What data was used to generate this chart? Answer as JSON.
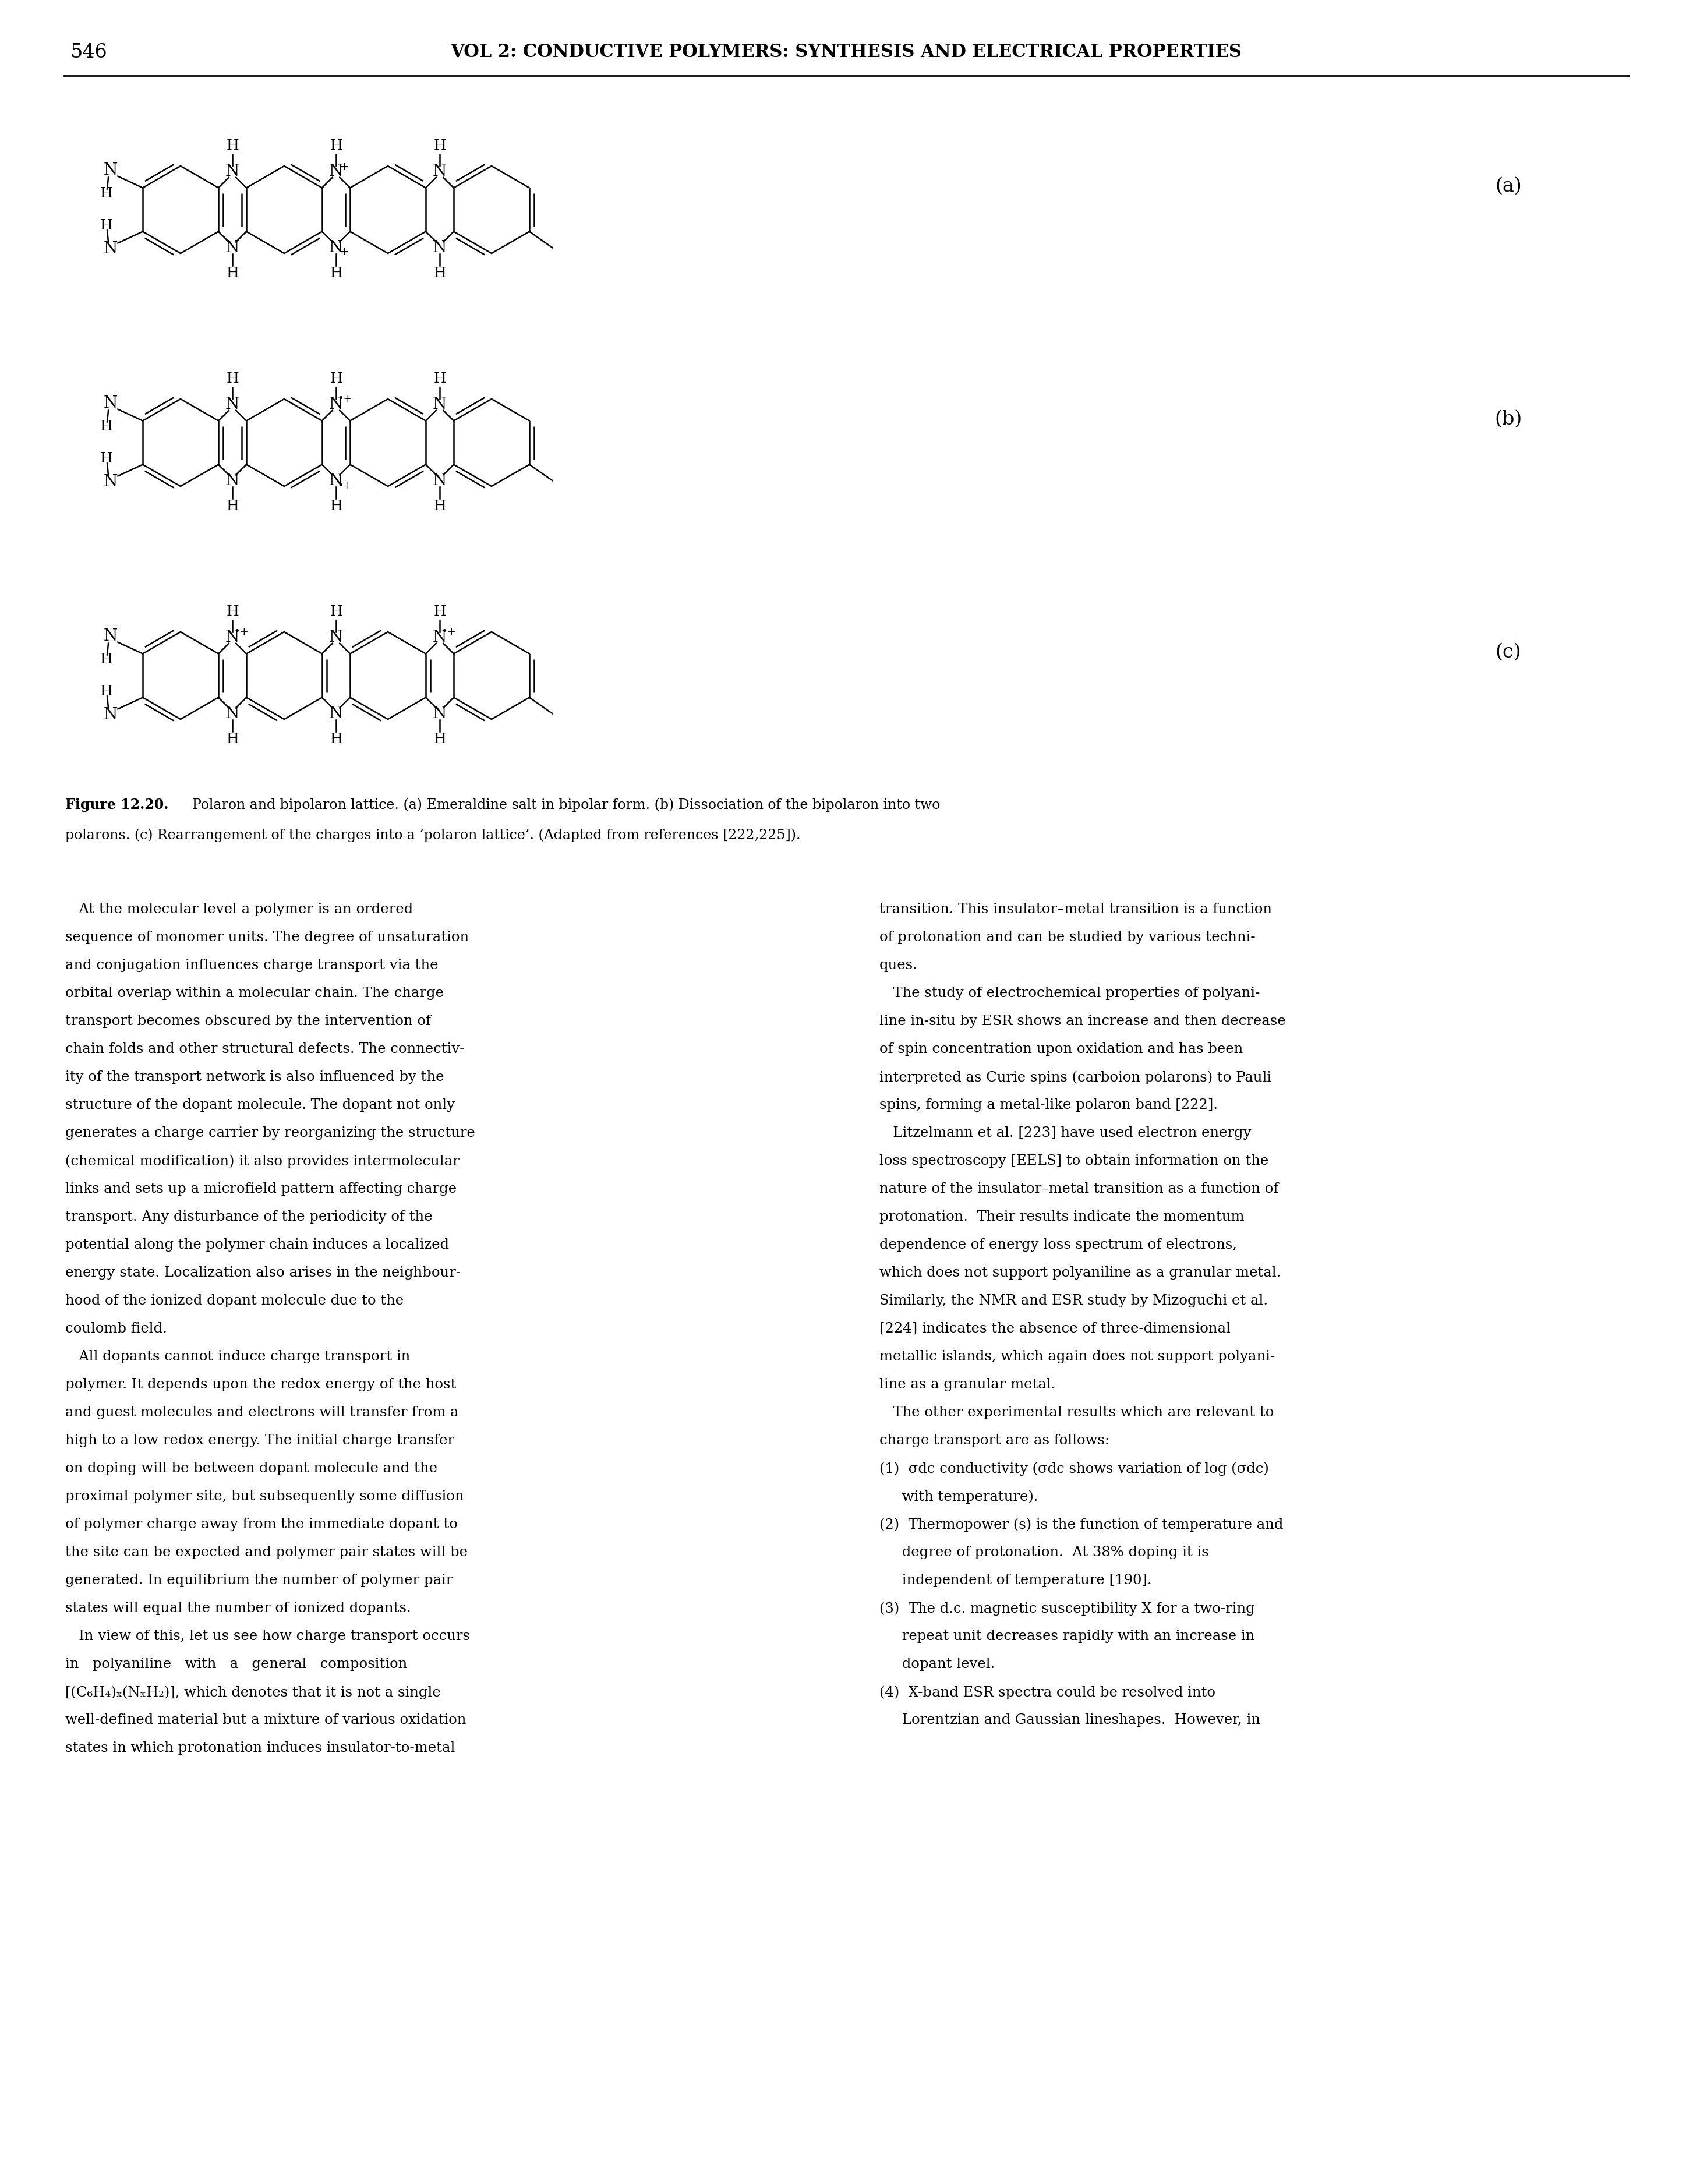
{
  "page_number": "546",
  "header_text": "VOL 2: CONDUCTIVE POLYMERS: SYNTHESIS AND ELECTRICAL PROPERTIES",
  "background_color": "#ffffff",
  "labels": [
    "(a)",
    "(b)",
    "(c)"
  ],
  "figure_caption_bold": "Figure 12.20.",
  "figure_caption_rest": " Polaron and bipolaron lattice. (a) Emeraldine salt in bipolar form. (b) Dissociation of the bipolaron into two polarons. (c) Rearrangement of the charges into a ‘polaron lattice’. (Adapted from references [222,225]).",
  "left_column": [
    "   At the molecular level a polymer is an ordered",
    "sequence of monomer units. The degree of unsaturation",
    "and conjugation influences charge transport via the",
    "orbital overlap within a molecular chain. The charge",
    "transport becomes obscured by the intervention of",
    "chain folds and other structural defects. The connectiv-",
    "ity of the transport network is also influenced by the",
    "structure of the dopant molecule. The dopant not only",
    "generates a charge carrier by reorganizing the structure",
    "(chemical modification) it also provides intermolecular",
    "links and sets up a microfield pattern affecting charge",
    "transport. Any disturbance of the periodicity of the",
    "potential along the polymer chain induces a localized",
    "energy state. Localization also arises in the neighbour-",
    "hood of the ionized dopant molecule due to the",
    "coulomb field.",
    "   All dopants cannot induce charge transport in",
    "polymer. It depends upon the redox energy of the host",
    "and guest molecules and electrons will transfer from a",
    "high to a low redox energy. The initial charge transfer",
    "on doping will be between dopant molecule and the",
    "proximal polymer site, but subsequently some diffusion",
    "of polymer charge away from the immediate dopant to",
    "the site can be expected and polymer pair states will be",
    "generated. In equilibrium the number of polymer pair",
    "states will equal the number of ionized dopants.",
    "   In view of this, let us see how charge transport occurs",
    "in   polyaniline   with   a   general   composition",
    "[(C₆H₄)ₓ(NₓH₂)], which denotes that it is not a single",
    "well-defined material but a mixture of various oxidation",
    "states in which protonation induces insulator-to-metal"
  ],
  "right_column": [
    "transition. This insulator–metal transition is a function",
    "of protonation and can be studied by various techni-",
    "ques.",
    "   The study of electrochemical properties of polyani-",
    "line in-situ by ESR shows an increase and then decrease",
    "of spin concentration upon oxidation and has been",
    "interpreted as Curie spins (carboion polarons) to Pauli",
    "spins, forming a metal-like polaron band [222].",
    "   Litzelmann et al. [223] have used electron energy",
    "loss spectroscopy [EELS] to obtain information on the",
    "nature of the insulator–metal transition as a function of",
    "protonation.  Their results indicate the momentum",
    "dependence of energy loss spectrum of electrons,",
    "which does not support polyaniline as a granular metal.",
    "Similarly, the NMR and ESR study by Mizoguchi et al.",
    "[224] indicates the absence of three-dimensional",
    "metallic islands, which again does not support polyani-",
    "line as a granular metal.",
    "   The other experimental results which are relevant to",
    "charge transport are as follows:",
    "(1)  σdc conductivity (σdc shows variation of log (σdc)",
    "     with temperature).",
    "(2)  Thermopower (s) is the function of temperature and",
    "     degree of protonation.  At 38% doping it is",
    "     independent of temperature [190].",
    "(3)  The d.c. magnetic susceptibility X for a two-ring",
    "     repeat unit decreases rapidly with an increase in",
    "     dopant level.",
    "(4)  X-band ESR spectra could be resolved into",
    "     Lorentzian and Gaussian lineshapes.  However, in"
  ],
  "struct_a": {
    "quinoid": [
      false,
      true,
      true,
      false
    ],
    "top_n": [
      "amine",
      "aminium",
      "amine"
    ],
    "bot_n": [
      "amine",
      "aminium",
      "amine"
    ]
  },
  "struct_b": {
    "quinoid": [
      false,
      true,
      true,
      false
    ],
    "top_n": [
      "amine",
      "radical_cation",
      "amine"
    ],
    "bot_n": [
      "amine",
      "radical_cation",
      "amine"
    ]
  },
  "struct_c": {
    "quinoid": [
      false,
      false,
      false,
      false
    ],
    "top_n": [
      "radical_cation",
      "amine",
      "radical_cation"
    ],
    "bot_n": [
      "amine",
      "amine",
      "amine"
    ]
  }
}
